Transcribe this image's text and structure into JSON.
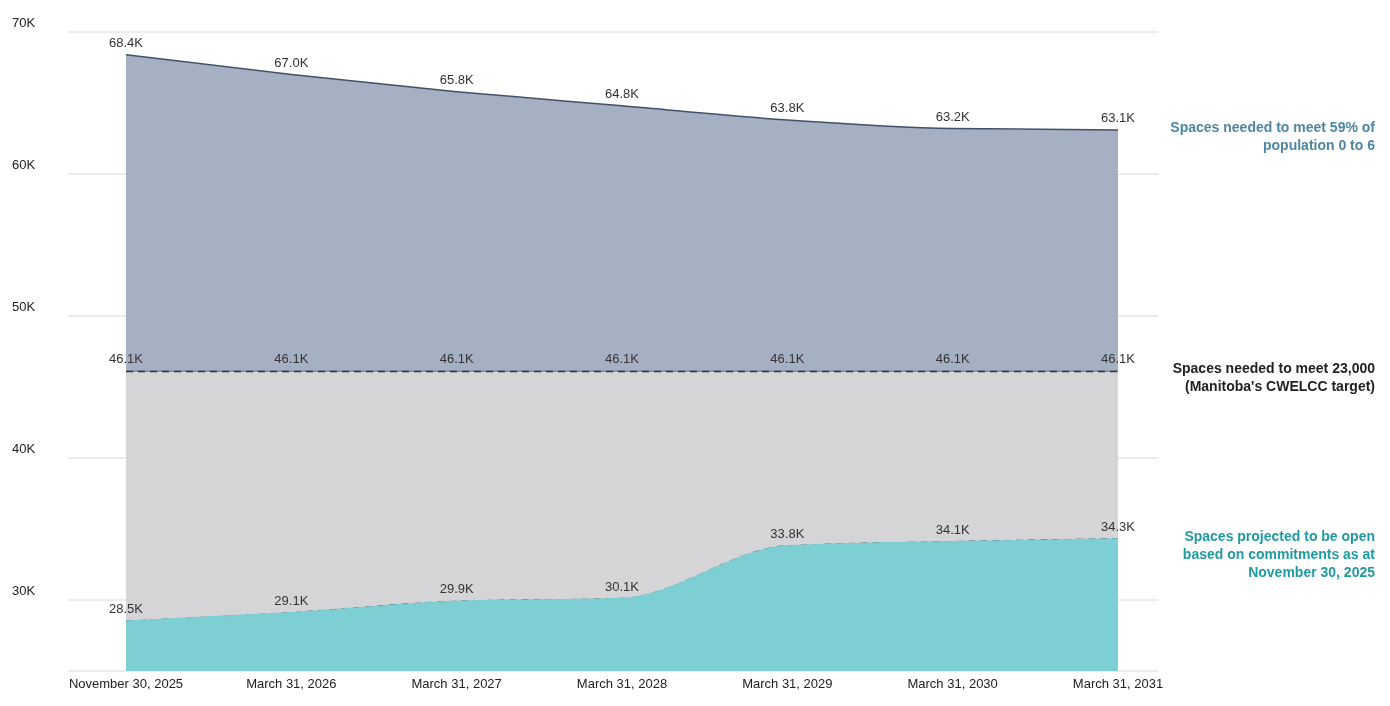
{
  "chart_data": {
    "type": "area",
    "categories": [
      "November 30, 2025",
      "March 31, 2026",
      "March 31, 2027",
      "March 31, 2028",
      "March 31, 2029",
      "March 31, 2030",
      "March 31, 2031"
    ],
    "series": [
      {
        "name": "Spaces needed to meet 59% of population 0 to 6",
        "color": "#a6b0c3",
        "values": [
          68.4,
          67.0,
          65.8,
          64.8,
          63.8,
          63.2,
          63.1
        ],
        "value_labels": [
          "68.4K",
          "67.0K",
          "65.8K",
          "64.8K",
          "63.8K",
          "63.2K",
          "63.1K"
        ]
      },
      {
        "name": "Spaces needed to meet 23,000 (Manitoba's CWELCC target)",
        "color": "#d5d5d7",
        "line_style": "dashed",
        "values": [
          46.1,
          46.1,
          46.1,
          46.1,
          46.1,
          46.1,
          46.1
        ],
        "value_labels": [
          "46.1K",
          "46.1K",
          "46.1K",
          "46.1K",
          "46.1K",
          "46.1K",
          "46.1K"
        ]
      },
      {
        "name": "Spaces projected to be open based on commitments as at November 30, 2025",
        "color": "#7ecfd3",
        "values": [
          28.5,
          29.1,
          29.9,
          30.1,
          33.8,
          34.1,
          34.3
        ],
        "value_labels": [
          "28.5K",
          "29.1K",
          "29.9K",
          "30.1K",
          "33.8K",
          "34.1K",
          "34.3K"
        ]
      }
    ],
    "ylim": [
      25,
      70
    ],
    "yticks": [
      {
        "value": 30,
        "label": "30K"
      },
      {
        "value": 40,
        "label": "40K"
      },
      {
        "value": 50,
        "label": "50K"
      },
      {
        "value": 60,
        "label": "60K"
      },
      {
        "value": 70,
        "label": "70K"
      }
    ],
    "grid": "y",
    "legend": false,
    "tick_labels": true
  }
}
